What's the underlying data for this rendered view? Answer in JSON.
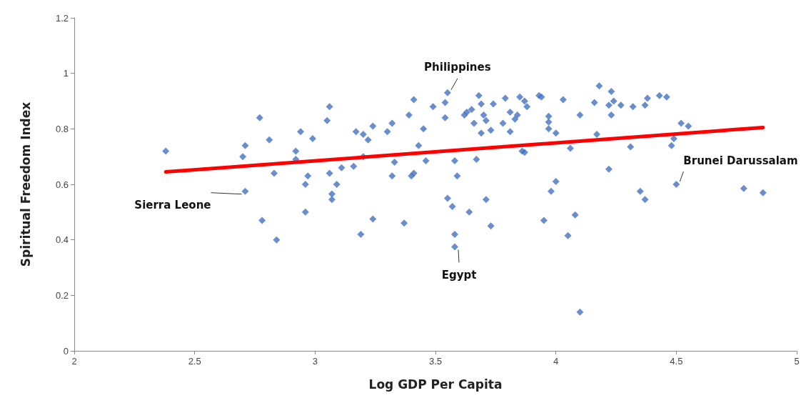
{
  "chart_data": {
    "type": "scatter",
    "xlabel": "Log GDP Per Capita",
    "ylabel": "Spiritual Freedom Index",
    "xlim": [
      2,
      5
    ],
    "xticks": [
      2,
      2.5,
      3,
      3.5,
      4,
      4.5,
      5
    ],
    "ylim": [
      0,
      1.2
    ],
    "yticks": [
      0,
      0.2,
      0.4,
      0.6,
      0.8,
      1,
      1.2
    ],
    "grid": false,
    "series": [
      {
        "color": "#4472c4",
        "marker": "diamond",
        "x": [
          2.38,
          2.7,
          2.71,
          2.71,
          2.77,
          2.78,
          2.81,
          2.83,
          2.84,
          2.92,
          2.92,
          2.94,
          2.96,
          2.96,
          2.97,
          2.99,
          3.05,
          3.06,
          3.06,
          3.07,
          3.07,
          3.09,
          3.11,
          3.16,
          3.17,
          3.19,
          3.2,
          3.2,
          3.22,
          3.24,
          3.24,
          3.3,
          3.32,
          3.32,
          3.33,
          3.37,
          3.39,
          3.4,
          3.41,
          3.41,
          3.43,
          3.45,
          3.46,
          3.49,
          3.54,
          3.54,
          3.55,
          3.55,
          3.57,
          3.58,
          3.58,
          3.59,
          3.58,
          3.62,
          3.63,
          3.64,
          3.65,
          3.66,
          3.67,
          3.68,
          3.69,
          3.69,
          3.7,
          3.71,
          3.71,
          3.73,
          3.73,
          3.74,
          3.78,
          3.79,
          3.81,
          3.81,
          3.83,
          3.84,
          3.85,
          3.86,
          3.87,
          3.87,
          3.88,
          3.93,
          3.94,
          3.95,
          3.97,
          3.97,
          3.97,
          3.98,
          4.0,
          4.0,
          4.03,
          4.05,
          4.06,
          4.08,
          4.1,
          4.1,
          4.16,
          4.17,
          4.18,
          4.22,
          4.22,
          4.23,
          4.23,
          4.24,
          4.27,
          4.31,
          4.32,
          4.35,
          4.37,
          4.37,
          4.38,
          4.43,
          4.46,
          4.48,
          4.49,
          4.5,
          4.52,
          4.55,
          4.78,
          4.86
        ],
        "values": [
          0.72,
          0.7,
          0.74,
          0.575,
          0.84,
          0.47,
          0.76,
          0.64,
          0.4,
          0.72,
          0.69,
          0.79,
          0.6,
          0.5,
          0.63,
          0.765,
          0.83,
          0.88,
          0.64,
          0.565,
          0.545,
          0.6,
          0.66,
          0.665,
          0.79,
          0.42,
          0.78,
          0.7,
          0.76,
          0.475,
          0.81,
          0.79,
          0.82,
          0.63,
          0.68,
          0.46,
          0.85,
          0.63,
          0.64,
          0.905,
          0.74,
          0.8,
          0.685,
          0.88,
          0.84,
          0.895,
          0.93,
          0.55,
          0.52,
          0.42,
          0.685,
          0.63,
          0.375,
          0.85,
          0.86,
          0.5,
          0.87,
          0.82,
          0.69,
          0.92,
          0.89,
          0.785,
          0.85,
          0.83,
          0.545,
          0.795,
          0.45,
          0.89,
          0.82,
          0.91,
          0.86,
          0.79,
          0.835,
          0.85,
          0.915,
          0.72,
          0.715,
          0.9,
          0.88,
          0.92,
          0.915,
          0.47,
          0.845,
          0.825,
          0.8,
          0.575,
          0.61,
          0.785,
          0.905,
          0.415,
          0.73,
          0.49,
          0.85,
          0.14,
          0.895,
          0.78,
          0.955,
          0.655,
          0.885,
          0.935,
          0.85,
          0.9,
          0.885,
          0.735,
          0.88,
          0.575,
          0.545,
          0.885,
          0.91,
          0.92,
          0.915,
          0.74,
          0.765,
          0.6,
          0.82,
          0.81,
          0.585,
          0.57
        ]
      },
      {
        "type": "line",
        "color": "#ff0000",
        "marker": "none",
        "line_style": "solid",
        "x": [
          2.38,
          4.86
        ],
        "values": [
          0.645,
          0.805
        ]
      }
    ],
    "annotations": [
      {
        "text": "Philippines",
        "x": 3.55,
        "y": 0.93
      },
      {
        "text": "Sierra Leone",
        "x": 2.71,
        "y": 0.575
      },
      {
        "text": "Egypt",
        "x": 3.58,
        "y": 0.375
      },
      {
        "text": "Brunei Darussalam",
        "x": 4.5,
        "y": 0.6
      }
    ]
  }
}
